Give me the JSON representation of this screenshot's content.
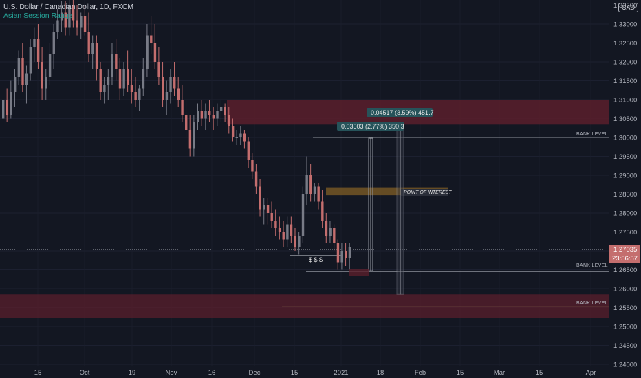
{
  "header": {
    "title": "U.S. Dollar / Canadian Dollar, 1D, FXCM",
    "indicator": "Asian Session Range",
    "currency_badge": "CAD"
  },
  "price_labels": {
    "last_price": "1.27035",
    "countdown": "23:56:57"
  },
  "annotations": {
    "bank_level": "BANK LEVEL",
    "point_of_interest": "POINT OF INTEREST",
    "liquidity": "$ $ $",
    "measure_1": "0.03503 (2.77%) 350.3",
    "measure_2": "0.04517 (3.59%) 451.7"
  },
  "colors": {
    "background": "#131722",
    "bull": "#787b86",
    "bear": "#c46e6e",
    "supply_zone": "#5a1f2c",
    "poi_zone": "#7a5a26",
    "measure_label": "#26535a"
  },
  "chart_data": {
    "type": "candlestick",
    "symbol": "USDCAD",
    "timeframe": "1D",
    "ylim": [
      1.24,
      1.34
    ],
    "y_ticks": [
      "1.24000",
      "1.24500",
      "1.25000",
      "1.25500",
      "1.26000",
      "1.26500",
      "1.27000",
      "1.27500",
      "1.28000",
      "1.28500",
      "1.29000",
      "1.29500",
      "1.30000",
      "1.30500",
      "1.31000",
      "1.31500",
      "1.32000",
      "1.32500",
      "1.33000",
      "1.33500"
    ],
    "x_ticks": [
      "15",
      "Oct",
      "19",
      "Nov",
      "16",
      "Dec",
      "15",
      "2021",
      "18",
      "Feb",
      "15",
      "Mar",
      "15",
      "Apr"
    ],
    "zones": [
      {
        "type": "supply",
        "from": 1.3034,
        "to": 1.31
      },
      {
        "type": "demand",
        "from": 1.2522,
        "to": 1.2585
      },
      {
        "type": "point_of_interest",
        "from": 1.2847,
        "to": 1.2868
      }
    ],
    "bank_levels": [
      1.3,
      1.2645,
      1.2552
    ],
    "last_price": 1.27035,
    "measurements": [
      {
        "from": 1.2647,
        "to": 1.2998,
        "change": 0.03503,
        "percent": 2.77,
        "pips": 350.3
      },
      {
        "from": 1.2585,
        "to": 1.3036,
        "change": 0.04517,
        "percent": 3.59,
        "pips": 451.7
      }
    ],
    "candles": [
      [
        1.305,
        1.312,
        1.303,
        1.31
      ],
      [
        1.31,
        1.313,
        1.304,
        1.306
      ],
      [
        1.306,
        1.315,
        1.305,
        1.312
      ],
      [
        1.312,
        1.318,
        1.308,
        1.316
      ],
      [
        1.316,
        1.323,
        1.314,
        1.321
      ],
      [
        1.321,
        1.325,
        1.312,
        1.314
      ],
      [
        1.314,
        1.319,
        1.309,
        1.317
      ],
      [
        1.317,
        1.326,
        1.315,
        1.324
      ],
      [
        1.324,
        1.329,
        1.32,
        1.326
      ],
      [
        1.326,
        1.33,
        1.318,
        1.32
      ],
      [
        1.32,
        1.324,
        1.31,
        1.313
      ],
      [
        1.313,
        1.318,
        1.31,
        1.316
      ],
      [
        1.316,
        1.325,
        1.314,
        1.322
      ],
      [
        1.322,
        1.33,
        1.318,
        1.328
      ],
      [
        1.328,
        1.334,
        1.326,
        1.331
      ],
      [
        1.331,
        1.336,
        1.328,
        1.333
      ],
      [
        1.333,
        1.336,
        1.327,
        1.329
      ],
      [
        1.329,
        1.337,
        1.327,
        1.335
      ],
      [
        1.335,
        1.337,
        1.329,
        1.331
      ],
      [
        1.331,
        1.335,
        1.327,
        1.329
      ],
      [
        1.329,
        1.333,
        1.326,
        1.332
      ],
      [
        1.332,
        1.335,
        1.327,
        1.328
      ],
      [
        1.328,
        1.333,
        1.32,
        1.322
      ],
      [
        1.322,
        1.327,
        1.318,
        1.325
      ],
      [
        1.325,
        1.327,
        1.315,
        1.318
      ],
      [
        1.318,
        1.32,
        1.31,
        1.312
      ],
      [
        1.312,
        1.316,
        1.309,
        1.314
      ],
      [
        1.314,
        1.318,
        1.31,
        1.316
      ],
      [
        1.316,
        1.325,
        1.314,
        1.322
      ],
      [
        1.322,
        1.326,
        1.315,
        1.318
      ],
      [
        1.318,
        1.321,
        1.31,
        1.313
      ],
      [
        1.313,
        1.32,
        1.311,
        1.318
      ],
      [
        1.318,
        1.323,
        1.312,
        1.314
      ],
      [
        1.314,
        1.318,
        1.309,
        1.312
      ],
      [
        1.312,
        1.316,
        1.308,
        1.31
      ],
      [
        1.31,
        1.314,
        1.307,
        1.313
      ],
      [
        1.313,
        1.321,
        1.311,
        1.318
      ],
      [
        1.318,
        1.33,
        1.316,
        1.327
      ],
      [
        1.327,
        1.332,
        1.322,
        1.325
      ],
      [
        1.325,
        1.33,
        1.318,
        1.32
      ],
      [
        1.32,
        1.324,
        1.314,
        1.316
      ],
      [
        1.316,
        1.32,
        1.308,
        1.31
      ],
      [
        1.31,
        1.315,
        1.306,
        1.312
      ],
      [
        1.312,
        1.318,
        1.309,
        1.316
      ],
      [
        1.316,
        1.32,
        1.311,
        1.313
      ],
      [
        1.313,
        1.316,
        1.308,
        1.31
      ],
      [
        1.31,
        1.314,
        1.304,
        1.306
      ],
      [
        1.306,
        1.31,
        1.3,
        1.302
      ],
      [
        1.302,
        1.306,
        1.295,
        1.297
      ],
      [
        1.297,
        1.306,
        1.295,
        1.304
      ],
      [
        1.304,
        1.309,
        1.302,
        1.307
      ],
      [
        1.307,
        1.31,
        1.303,
        1.305
      ],
      [
        1.305,
        1.309,
        1.302,
        1.307
      ],
      [
        1.307,
        1.31,
        1.304,
        1.306
      ],
      [
        1.306,
        1.308,
        1.302,
        1.305
      ],
      [
        1.305,
        1.309,
        1.303,
        1.307
      ],
      [
        1.307,
        1.31,
        1.304,
        1.308
      ],
      [
        1.308,
        1.309,
        1.304,
        1.306
      ],
      [
        1.306,
        1.308,
        1.301,
        1.303
      ],
      [
        1.303,
        1.305,
        1.299,
        1.3
      ],
      [
        1.3,
        1.302,
        1.298,
        1.3
      ],
      [
        1.3,
        1.303,
        1.298,
        1.301
      ],
      [
        1.301,
        1.302,
        1.297,
        1.299
      ],
      [
        1.299,
        1.3,
        1.292,
        1.294
      ],
      [
        1.294,
        1.296,
        1.289,
        1.291
      ],
      [
        1.291,
        1.293,
        1.285,
        1.287
      ],
      [
        1.287,
        1.289,
        1.279,
        1.281
      ],
      [
        1.281,
        1.284,
        1.277,
        1.282
      ],
      [
        1.282,
        1.284,
        1.277,
        1.28
      ],
      [
        1.28,
        1.283,
        1.276,
        1.278
      ],
      [
        1.278,
        1.281,
        1.274,
        1.276
      ],
      [
        1.276,
        1.279,
        1.273,
        1.275
      ],
      [
        1.275,
        1.278,
        1.271,
        1.273
      ],
      [
        1.273,
        1.279,
        1.271,
        1.277
      ],
      [
        1.277,
        1.279,
        1.272,
        1.274
      ],
      [
        1.274,
        1.276,
        1.27,
        1.271
      ],
      [
        1.271,
        1.275,
        1.269,
        1.274
      ],
      [
        1.274,
        1.287,
        1.272,
        1.285
      ],
      [
        1.285,
        1.295,
        1.282,
        1.29
      ],
      [
        1.29,
        1.293,
        1.283,
        1.285
      ],
      [
        1.285,
        1.288,
        1.283,
        1.287
      ],
      [
        1.287,
        1.288,
        1.281,
        1.283
      ],
      [
        1.283,
        1.286,
        1.276,
        1.278
      ],
      [
        1.278,
        1.28,
        1.272,
        1.274
      ],
      [
        1.274,
        1.278,
        1.272,
        1.276
      ],
      [
        1.276,
        1.277,
        1.27,
        1.272
      ],
      [
        1.272,
        1.273,
        1.265,
        1.267
      ],
      [
        1.267,
        1.272,
        1.265,
        1.27
      ],
      [
        1.27,
        1.272,
        1.266,
        1.268
      ],
      [
        1.268,
        1.272,
        1.265,
        1.271
      ]
    ]
  }
}
